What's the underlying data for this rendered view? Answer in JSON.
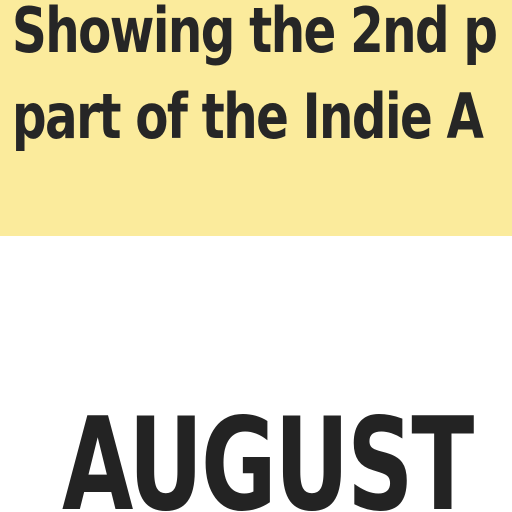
{
  "banner": {
    "line1": "Showing the 2nd p",
    "line2": "part of the Indie A",
    "background_color": "#fbeb9c"
  },
  "main": {
    "month_heading": "AUGUST"
  }
}
